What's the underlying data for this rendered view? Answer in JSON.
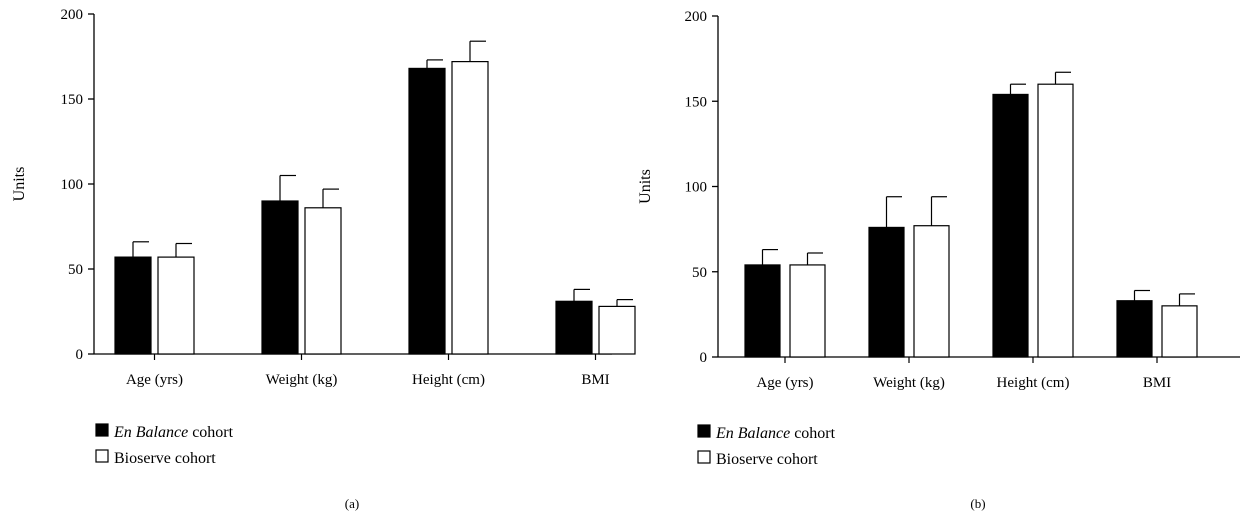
{
  "chart_data": [
    {
      "type": "bar",
      "panel_label": "(a)",
      "ylabel": "Units",
      "ylim": [
        0,
        200
      ],
      "yticks": [
        0,
        50,
        100,
        150,
        200
      ],
      "categories": [
        "Age (yrs)",
        "Weight (kg)",
        "Height (cm)",
        "BMI"
      ],
      "series": [
        {
          "name_prefix": "En Balance",
          "name_suffix": " cohort",
          "fill": "#000000",
          "values": [
            57,
            90,
            168,
            31
          ],
          "errors": [
            9,
            15,
            5,
            7
          ]
        },
        {
          "name_prefix": "",
          "name_suffix": "Bioserve cohort",
          "fill": "#ffffff",
          "values": [
            57,
            86,
            172,
            28
          ],
          "errors": [
            8,
            11,
            12,
            4
          ]
        }
      ],
      "legend_position": "bottom-left",
      "grid": false
    },
    {
      "type": "bar",
      "panel_label": "(b)",
      "ylabel": "Units",
      "ylim": [
        0,
        200
      ],
      "yticks": [
        0,
        50,
        100,
        150,
        200
      ],
      "categories": [
        "Age (yrs)",
        "Weight (kg)",
        "Height (cm)",
        "BMI"
      ],
      "series": [
        {
          "name_prefix": "En Balance",
          "name_suffix": " cohort",
          "fill": "#000000",
          "values": [
            54,
            76,
            154,
            33
          ],
          "errors": [
            9,
            18,
            6,
            6
          ]
        },
        {
          "name_prefix": "",
          "name_suffix": "Bioserve cohort",
          "fill": "#ffffff",
          "values": [
            54,
            77,
            160,
            30
          ],
          "errors": [
            7,
            17,
            7,
            7
          ]
        }
      ],
      "legend_position": "bottom-left",
      "grid": false
    }
  ]
}
